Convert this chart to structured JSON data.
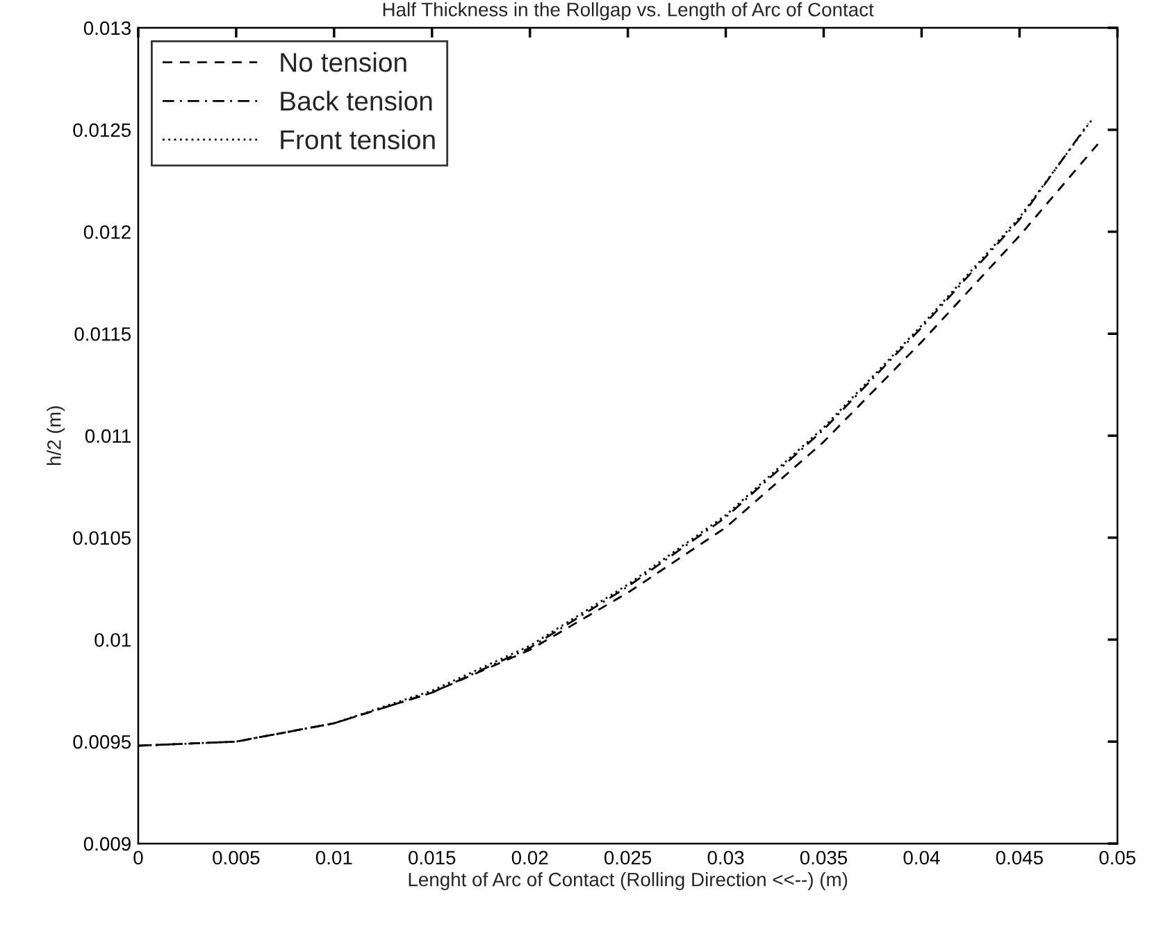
{
  "chart_data": {
    "type": "line",
    "title": "Half Thickness in the Rollgap vs. Length of Arc of Contact",
    "xlabel": "Lenght of Arc of Contact (Rolling Direction <<--) (m)",
    "ylabel": "h/2 (m)",
    "xlim": [
      0,
      0.05
    ],
    "ylim": [
      0.009,
      0.013
    ],
    "xticks": [
      0,
      0.005,
      0.01,
      0.015,
      0.02,
      0.025,
      0.03,
      0.035,
      0.04,
      0.045,
      0.05
    ],
    "yticks": [
      0.009,
      0.0095,
      0.01,
      0.0105,
      0.011,
      0.0115,
      0.012,
      0.0125,
      0.013
    ],
    "grid": false,
    "legend": "top left",
    "marker": "none",
    "series": [
      {
        "name": "No tension",
        "color": "#000000",
        "line_style": "dashed",
        "x": [
          0,
          0.005,
          0.01,
          0.015,
          0.02,
          0.025,
          0.03,
          0.035,
          0.04,
          0.045,
          0.049
        ],
        "values": [
          0.00948,
          0.0095,
          0.00959,
          0.00974,
          0.00995,
          0.01023,
          0.01055,
          0.01097,
          0.01146,
          0.01198,
          0.01243
        ]
      },
      {
        "name": "Back tension",
        "color": "#000000",
        "line_style": "dashdot",
        "x": [
          0,
          0.005,
          0.01,
          0.015,
          0.02,
          0.025,
          0.03,
          0.035,
          0.04,
          0.045,
          0.0485
        ],
        "values": [
          0.00948,
          0.0095,
          0.00959,
          0.00974,
          0.00996,
          0.01026,
          0.0106,
          0.01103,
          0.01153,
          0.01206,
          0.01253
        ]
      },
      {
        "name": "Front tension",
        "color": "#000000",
        "line_style": "dotted",
        "x": [
          0,
          0.005,
          0.01,
          0.015,
          0.02,
          0.025,
          0.03,
          0.035,
          0.04,
          0.045,
          0.0487
        ],
        "values": [
          0.00948,
          0.0095,
          0.00959,
          0.00975,
          0.00997,
          0.01027,
          0.01061,
          0.01104,
          0.01154,
          0.01207,
          0.01255
        ]
      }
    ]
  }
}
